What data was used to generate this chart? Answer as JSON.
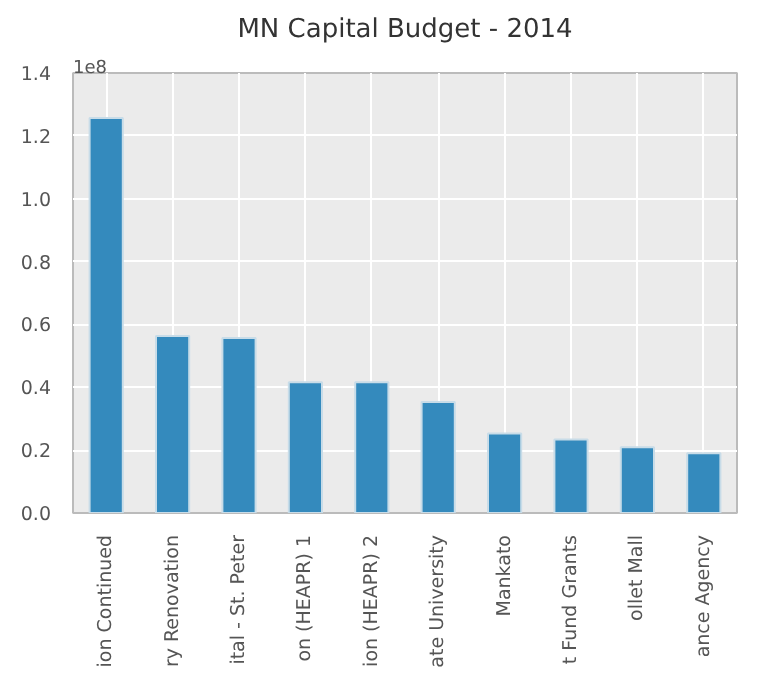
{
  "chart_data": {
    "type": "bar",
    "title": "MN Capital Budget - 2014",
    "categories": [
      "ion Continued",
      "ry Renovation",
      "ital - St. Peter",
      "on (HEAPR) 1",
      "ion (HEAPR) 2",
      "ate University",
      "Mankato",
      "t Fund Grants",
      "ollet Mall",
      "ance Agency"
    ],
    "values": [
      1.257,
      0.563,
      0.557,
      0.416,
      0.416,
      0.353,
      0.253,
      0.234,
      0.209,
      0.19
    ],
    "color": "#348abd",
    "ylim": [
      0,
      1.4
    ],
    "yticks": [
      {
        "value": 0,
        "label": "0.0"
      },
      {
        "value": 0.2,
        "label": "0.2"
      },
      {
        "value": 0.4,
        "label": "0.4"
      },
      {
        "value": 0.6,
        "label": "0.6"
      },
      {
        "value": 0.8,
        "label": "0.8"
      },
      {
        "value": 1.0,
        "label": "1.0"
      },
      {
        "value": 1.2,
        "label": "1.2"
      },
      {
        "value": 1.4,
        "label": "1.4"
      }
    ],
    "annotations": [
      "1e8"
    ],
    "grid": true
  }
}
